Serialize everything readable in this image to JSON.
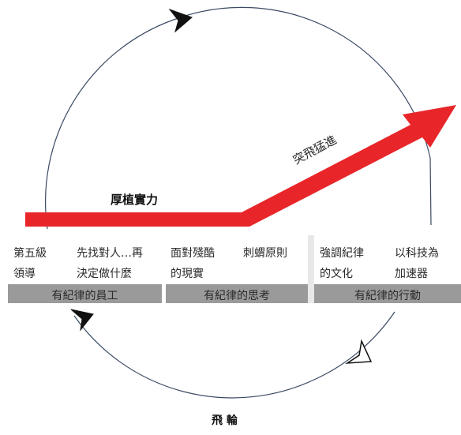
{
  "arrow_labels": {
    "buildup": "厚植實力",
    "breakthrough": "突飛猛進"
  },
  "columns": [
    {
      "a": [
        "第五級",
        "領導"
      ],
      "b": [
        "先找對人…再",
        "決定做什麼"
      ],
      "band": "有紀律的員工"
    },
    {
      "a": [
        "面對殘酷",
        "的現實"
      ],
      "b": [
        "刺蝟原則"
      ],
      "band": "有紀律的思考"
    },
    {
      "a": [
        "強調紀律",
        "的文化"
      ],
      "b": [
        "以科技為",
        "加速器"
      ],
      "band": "有紀律的行動"
    }
  ],
  "caption": "飛 輪",
  "colors": {
    "arrow": "#e8262a",
    "band": "#9a9a9a",
    "circle": "#3b4a63"
  }
}
